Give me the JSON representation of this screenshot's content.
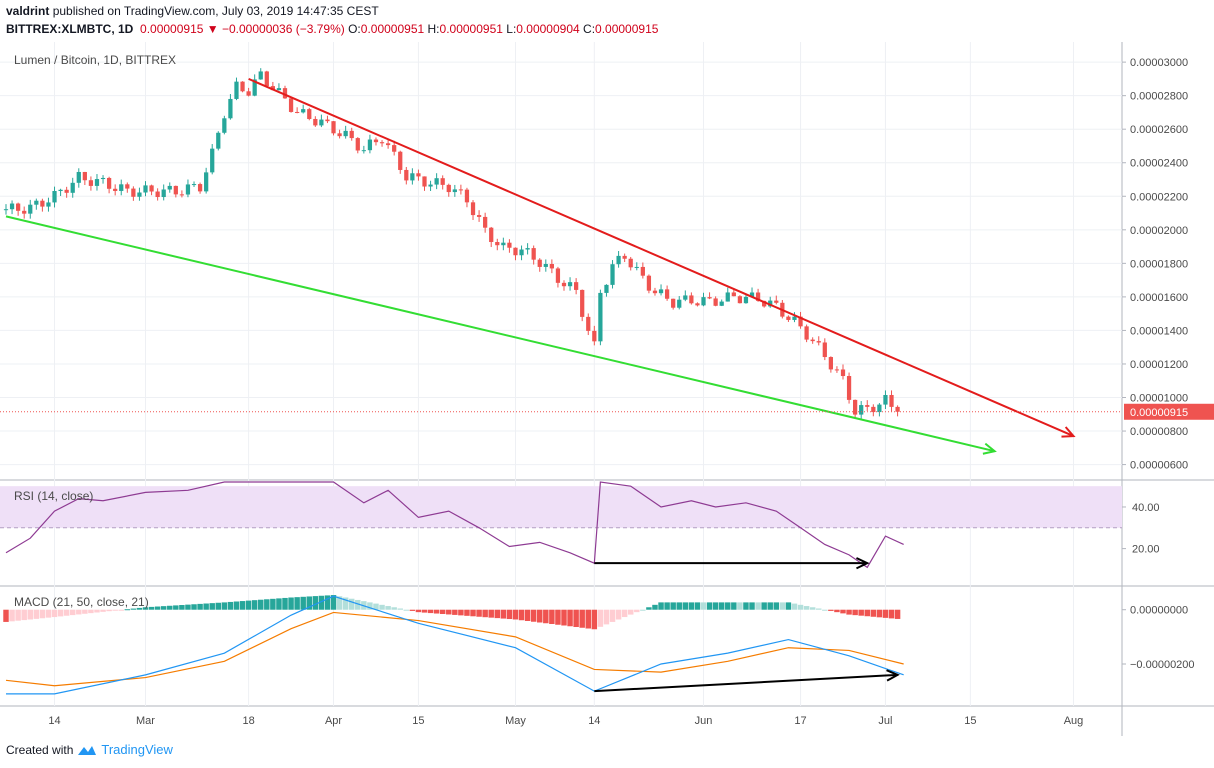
{
  "header": {
    "author": "valdrint",
    "published_text": "published on TradingView.com, July 03, 2019 14:47:35 CEST",
    "symbol": "BITTREX:XLMBTC, 1D",
    "last": "0.00000915",
    "change": "▼ −0.00000036 (−3.79%)",
    "o_label": "O:",
    "o": "0.00000951",
    "h_label": "H:",
    "h": "0.00000951",
    "l_label": "L:",
    "l": "0.00000904",
    "c_label": "C:",
    "c": "0.00000915"
  },
  "footer": {
    "created_with": "Created with",
    "brand": "TradingView",
    "logo_icon": "tradingview-logo-icon"
  },
  "colors": {
    "up": "#26a69a",
    "down": "#ef5350",
    "red_line": "#e31c1c",
    "green_line": "#33dd33",
    "rsi": "#8e3b93",
    "macd": "#2196f3",
    "signal": "#f57c00",
    "rsi_band": "#efe0f7"
  },
  "chart_data": [
    {
      "type": "candlestick",
      "title": "Lumen / Bitcoin, 1D, BITTREX",
      "x_ticks": [
        "14",
        "Mar",
        "18",
        "Apr",
        "15",
        "May",
        "14",
        "Jun",
        "17",
        "Jul",
        "15",
        "Aug"
      ],
      "x_tick_dates": [
        "2019-02-14",
        "2019-03-01",
        "2019-03-18",
        "2019-04-01",
        "2019-04-15",
        "2019-05-01",
        "2019-05-14",
        "2019-06-01",
        "2019-06-17",
        "2019-07-01",
        "2019-07-15",
        "2019-08-01"
      ],
      "x_range": [
        "2019-02-06",
        "2019-08-09"
      ],
      "y_ticks": [
        "0.00003000",
        "0.00002800",
        "0.00002600",
        "0.00002400",
        "0.00002200",
        "0.00002000",
        "0.00001800",
        "0.00001600",
        "0.00001400",
        "0.00001200",
        "0.00001000",
        "0.00000800",
        "0.00000600"
      ],
      "y_range": [
        5.2e-06,
        3.12e-05
      ],
      "last_price_label": "0.00000915",
      "last_price": 9.15e-06,
      "trendlines": [
        {
          "color": "red",
          "from": [
            "2019-03-18",
            2.9e-05
          ],
          "to": [
            "2019-08-01",
            7.7e-06
          ],
          "arrow": true
        },
        {
          "color": "green",
          "from": [
            "2019-02-06",
            2.08e-05
          ],
          "to": [
            "2019-07-19",
            6.8e-06
          ],
          "arrow": true
        }
      ],
      "closes": [
        [
          "2019-02-06",
          2.12e-05
        ],
        [
          "2019-02-10",
          2.13e-05
        ],
        [
          "2019-02-14",
          2.2e-05
        ],
        [
          "2019-02-18",
          2.31e-05
        ],
        [
          "2019-02-22",
          2.28e-05
        ],
        [
          "2019-02-26",
          2.23e-05
        ],
        [
          "2019-03-02",
          2.23e-05
        ],
        [
          "2019-03-06",
          2.23e-05
        ],
        [
          "2019-03-10",
          2.26e-05
        ],
        [
          "2019-03-12",
          2.45e-05
        ],
        [
          "2019-03-14",
          2.7e-05
        ],
        [
          "2019-03-16",
          2.85e-05
        ],
        [
          "2019-03-18",
          2.83e-05
        ],
        [
          "2019-03-20",
          2.92e-05
        ],
        [
          "2019-03-22",
          2.85e-05
        ],
        [
          "2019-03-26",
          2.7e-05
        ],
        [
          "2019-03-30",
          2.64e-05
        ],
        [
          "2019-04-03",
          2.56e-05
        ],
        [
          "2019-04-06",
          2.48e-05
        ],
        [
          "2019-04-09",
          2.55e-05
        ],
        [
          "2019-04-13",
          2.32e-05
        ],
        [
          "2019-04-17",
          2.28e-05
        ],
        [
          "2019-04-20",
          2.26e-05
        ],
        [
          "2019-04-23",
          2.18e-05
        ],
        [
          "2019-04-26",
          1.99e-05
        ],
        [
          "2019-04-29",
          1.89e-05
        ],
        [
          "2019-05-02",
          1.88e-05
        ],
        [
          "2019-05-05",
          1.81e-05
        ],
        [
          "2019-05-08",
          1.71e-05
        ],
        [
          "2019-05-11",
          1.63e-05
        ],
        [
          "2019-05-13",
          1.4e-05
        ],
        [
          "2019-05-14",
          1.3e-05
        ],
        [
          "2019-05-15",
          1.63e-05
        ],
        [
          "2019-05-17",
          1.78e-05
        ],
        [
          "2019-05-19",
          1.85e-05
        ],
        [
          "2019-05-21",
          1.75e-05
        ],
        [
          "2019-05-24",
          1.63e-05
        ],
        [
          "2019-05-27",
          1.57e-05
        ],
        [
          "2019-05-30",
          1.58e-05
        ],
        [
          "2019-06-02",
          1.57e-05
        ],
        [
          "2019-06-06",
          1.6e-05
        ],
        [
          "2019-06-10",
          1.59e-05
        ],
        [
          "2019-06-13",
          1.54e-05
        ],
        [
          "2019-06-16",
          1.45e-05
        ],
        [
          "2019-06-18",
          1.38e-05
        ],
        [
          "2019-06-21",
          1.25e-05
        ],
        [
          "2019-06-24",
          1.1e-05
        ],
        [
          "2019-06-26",
          9.2e-06
        ],
        [
          "2019-06-28",
          9.3e-06
        ],
        [
          "2019-07-01",
          9.8e-06
        ],
        [
          "2019-07-03",
          9.15e-06
        ]
      ]
    },
    {
      "type": "line",
      "title": "RSI (14, close)",
      "y_ticks": [
        "40.00",
        "20.00"
      ],
      "y_range": [
        3,
        52
      ],
      "band": [
        30,
        50
      ],
      "points": [
        [
          "2019-02-06",
          18
        ],
        [
          "2019-02-10",
          25
        ],
        [
          "2019-02-14",
          38
        ],
        [
          "2019-02-18",
          44
        ],
        [
          "2019-02-22",
          43
        ],
        [
          "2019-03-01",
          47
        ],
        [
          "2019-03-08",
          48
        ],
        [
          "2019-03-14",
          52
        ],
        [
          "2019-03-18",
          52
        ],
        [
          "2019-03-22",
          52
        ],
        [
          "2019-04-01",
          52
        ],
        [
          "2019-04-06",
          42
        ],
        [
          "2019-04-10",
          48
        ],
        [
          "2019-04-15",
          35
        ],
        [
          "2019-04-20",
          38
        ],
        [
          "2019-04-25",
          30
        ],
        [
          "2019-04-30",
          21
        ],
        [
          "2019-05-05",
          23
        ],
        [
          "2019-05-10",
          18
        ],
        [
          "2019-05-14",
          13
        ],
        [
          "2019-05-15",
          52
        ],
        [
          "2019-05-20",
          50
        ],
        [
          "2019-05-25",
          40
        ],
        [
          "2019-05-30",
          43
        ],
        [
          "2019-06-03",
          40
        ],
        [
          "2019-06-08",
          42
        ],
        [
          "2019-06-13",
          38
        ],
        [
          "2019-06-17",
          30
        ],
        [
          "2019-06-21",
          22
        ],
        [
          "2019-06-25",
          17
        ],
        [
          "2019-06-28",
          11
        ],
        [
          "2019-07-01",
          26
        ],
        [
          "2019-07-04",
          22
        ]
      ],
      "divergence": {
        "from": [
          "2019-05-14",
          13
        ],
        "to": [
          "2019-06-28",
          13
        ]
      }
    },
    {
      "type": "macd",
      "title": "MACD (21, 50, close, 21)",
      "y_ticks": [
        "0.00000000",
        "−0.00000200"
      ],
      "y_range": [
        -3.4e-06,
        8e-07
      ],
      "macd": [
        [
          "2019-02-06",
          -3.1e-06
        ],
        [
          "2019-02-14",
          -3.1e-06
        ],
        [
          "2019-03-01",
          -2.4e-06
        ],
        [
          "2019-03-14",
          -1.6e-06
        ],
        [
          "2019-03-25",
          -2e-07
        ],
        [
          "2019-04-01",
          5e-07
        ],
        [
          "2019-04-15",
          -5e-07
        ],
        [
          "2019-05-01",
          -1.4e-06
        ],
        [
          "2019-05-14",
          -3e-06
        ],
        [
          "2019-05-25",
          -2e-06
        ],
        [
          "2019-06-05",
          -1.6e-06
        ],
        [
          "2019-06-15",
          -1.1e-06
        ],
        [
          "2019-06-25",
          -1.7e-06
        ],
        [
          "2019-07-04",
          -2.4e-06
        ]
      ],
      "signal": [
        [
          "2019-02-06",
          -2.6e-06
        ],
        [
          "2019-02-14",
          -2.8e-06
        ],
        [
          "2019-03-01",
          -2.5e-06
        ],
        [
          "2019-03-14",
          -1.9e-06
        ],
        [
          "2019-03-25",
          -7e-07
        ],
        [
          "2019-04-01",
          -1e-07
        ],
        [
          "2019-04-15",
          -4e-07
        ],
        [
          "2019-05-01",
          -1e-06
        ],
        [
          "2019-05-14",
          -2.2e-06
        ],
        [
          "2019-05-25",
          -2.3e-06
        ],
        [
          "2019-06-05",
          -1.9e-06
        ],
        [
          "2019-06-15",
          -1.4e-06
        ],
        [
          "2019-06-25",
          -1.5e-06
        ],
        [
          "2019-07-04",
          -2e-06
        ]
      ],
      "divergence": {
        "from": [
          "2019-05-14",
          -3e-06
        ],
        "to": [
          "2019-07-03",
          -2.4e-06
        ]
      }
    }
  ]
}
